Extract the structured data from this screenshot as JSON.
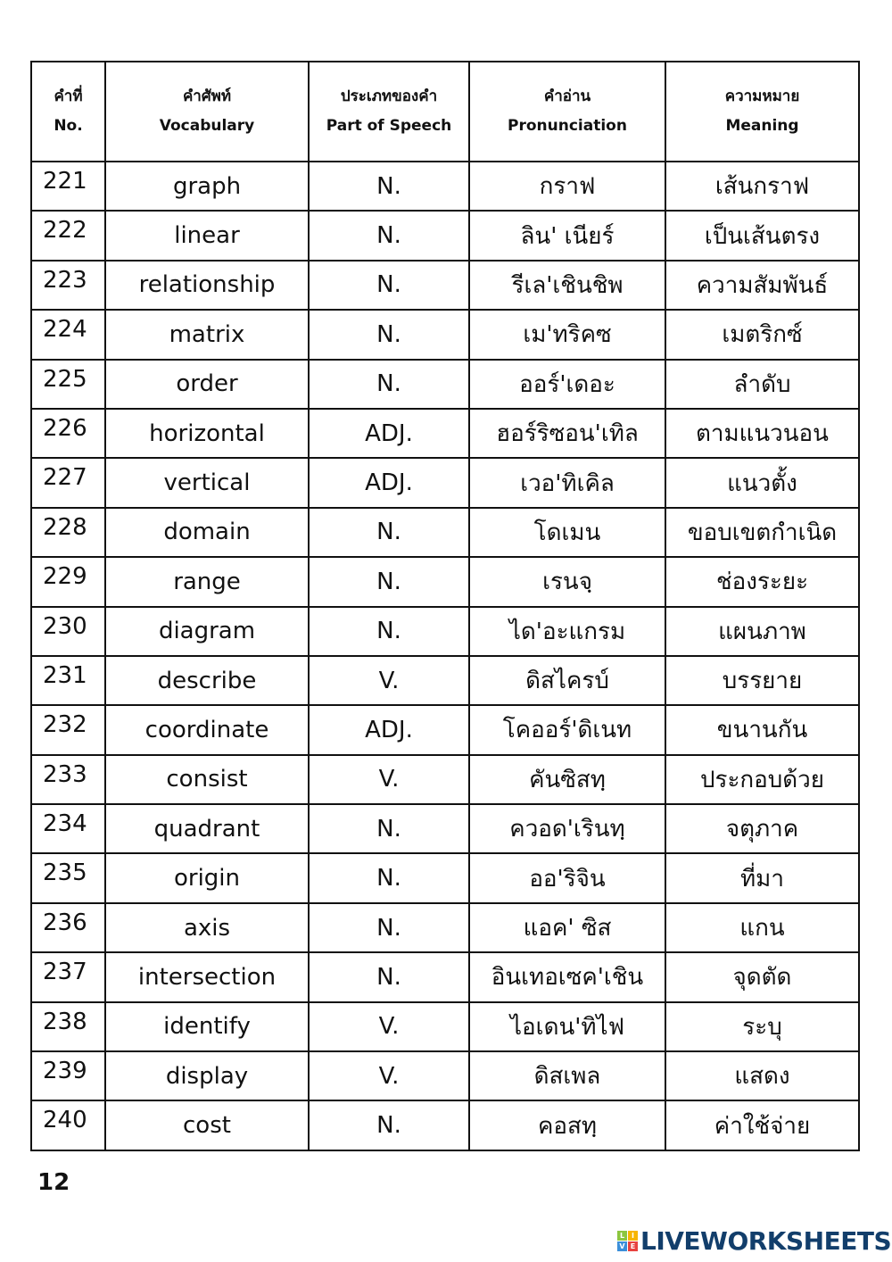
{
  "header": {
    "no": {
      "th": "คำที่",
      "en": "No."
    },
    "vocabulary": {
      "th": "คำศัพท์",
      "en": "Vocabulary"
    },
    "pos": {
      "th": "ประเภทของคำ",
      "en": "Part of Speech"
    },
    "pronunciation": {
      "th": "คำอ่าน",
      "en": "Pronunciation"
    },
    "meaning": {
      "th": "ความหมาย",
      "en": "Meaning"
    }
  },
  "rows": [
    {
      "no": "221",
      "word": "graph",
      "pos": "N.",
      "pron": "กราฟ",
      "meaning": "เส้นกราฟ"
    },
    {
      "no": "222",
      "word": "linear",
      "pos": "N.",
      "pron": "ลิน' เนียร์",
      "meaning": "เป็นเส้นตรง"
    },
    {
      "no": "223",
      "word": "relationship",
      "pos": "N.",
      "pron": "รีเล'เชินชิพ",
      "meaning": "ความสัมพันธ์"
    },
    {
      "no": "224",
      "word": "matrix",
      "pos": "N.",
      "pron": "เม'ทริคซ",
      "meaning": "เมตริกซ์"
    },
    {
      "no": "225",
      "word": "order",
      "pos": "N.",
      "pron": "ออร์'เดอะ",
      "meaning": "ลำดับ"
    },
    {
      "no": "226",
      "word": "horizontal",
      "pos": "ADJ.",
      "pron": "ฮอร์ริซอน'เทิล",
      "meaning": "ตามแนวนอน"
    },
    {
      "no": "227",
      "word": "vertical",
      "pos": "ADJ.",
      "pron": "เวอ'ทิเคิล",
      "meaning": "แนวตั้ง"
    },
    {
      "no": "228",
      "word": "domain",
      "pos": "N.",
      "pron": "โดเมน",
      "meaning": "ขอบเขตกำเนิด"
    },
    {
      "no": "229",
      "word": "range",
      "pos": "N.",
      "pron": "เรนจฺ",
      "meaning": "ช่องระยะ"
    },
    {
      "no": "230",
      "word": "diagram",
      "pos": "N.",
      "pron": "ได'อะแกรม",
      "meaning": "แผนภาพ"
    },
    {
      "no": "231",
      "word": "describe",
      "pos": "V.",
      "pron": "ดิสไครบ์",
      "meaning": "บรรยาย"
    },
    {
      "no": "232",
      "word": "coordinate",
      "pos": "ADJ.",
      "pron": "โคออร์'ดิเนท",
      "meaning": "ขนานกัน"
    },
    {
      "no": "233",
      "word": "consist",
      "pos": "V.",
      "pron": "คันซิสทฺ",
      "meaning": "ประกอบด้วย"
    },
    {
      "no": "234",
      "word": "quadrant",
      "pos": "N.",
      "pron": "ควอด'เรินทฺ",
      "meaning": "จตุภาค"
    },
    {
      "no": "235",
      "word": "origin",
      "pos": "N.",
      "pron": "ออ'ริจิน",
      "meaning": "ที่มา"
    },
    {
      "no": "236",
      "word": "axis",
      "pos": "N.",
      "pron": "แอค' ซิส",
      "meaning": "แกน"
    },
    {
      "no": "237",
      "word": "intersection",
      "pos": "N.",
      "pron": "อินเทอเซค'เชิน",
      "meaning": "จุดตัด"
    },
    {
      "no": "238",
      "word": "identify",
      "pos": "V.",
      "pron": "ไอเดน'ทิไฟ",
      "meaning": "ระบุ"
    },
    {
      "no": "239",
      "word": "display",
      "pos": "V.",
      "pron": "ดิสเพล",
      "meaning": "แสดง"
    },
    {
      "no": "240",
      "word": "cost",
      "pos": "N.",
      "pron": "คอสทฺ",
      "meaning": "ค่าใช้จ่าย"
    }
  ],
  "page_number": "12",
  "logo": {
    "text": "LIVEWORKSHEETS",
    "blocks": [
      "L",
      "I",
      "V",
      "E"
    ],
    "block_colors": [
      "#8cc63f",
      "#f7b500",
      "#3b8fd9",
      "#e8423f"
    ],
    "text_color": "#123e6b"
  }
}
